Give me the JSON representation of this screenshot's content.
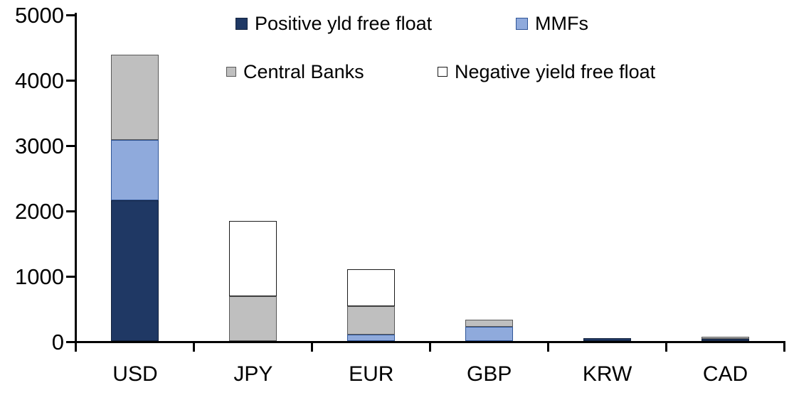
{
  "chart_data": {
    "type": "bar",
    "stacked": true,
    "title": "",
    "xlabel": "",
    "ylabel": "",
    "categories": [
      "USD",
      "JPY",
      "EUR",
      "GBP",
      "KRW",
      "CAD"
    ],
    "series": [
      {
        "name": "Positive yld free float",
        "color": "#1F3864",
        "border_color": "#14233E",
        "values": [
          2150,
          0,
          0,
          0,
          45,
          30
        ]
      },
      {
        "name": "MMFs",
        "color": "#8FAADC",
        "border_color": "#2F5597",
        "values": [
          930,
          0,
          100,
          215,
          0,
          0
        ]
      },
      {
        "name": "Central Banks",
        "color": "#BFBFBF",
        "border_color": "#595959",
        "values": [
          1300,
          690,
          430,
          115,
          0,
          30
        ]
      },
      {
        "name": "Negative yield free float",
        "color": "#FFFFFF",
        "border_color": "#1A1A1A",
        "values": [
          0,
          1150,
          570,
          0,
          0,
          0
        ]
      }
    ],
    "totals": {
      "USD": 4380,
      "JPY": 1840,
      "EUR": 1100,
      "GBP": 330,
      "KRW": 45,
      "CAD": 60
    },
    "yticks": [
      0,
      1000,
      2000,
      3000,
      4000,
      5000
    ],
    "ylim": [
      0,
      5000
    ],
    "grid": false,
    "legend_position": "top",
    "legend_rows": [
      [
        "Positive yld free float",
        "MMFs"
      ],
      [
        "Central Banks",
        "Negative yield free float"
      ]
    ],
    "axis_color": "#000000",
    "text_color": "#000000"
  }
}
